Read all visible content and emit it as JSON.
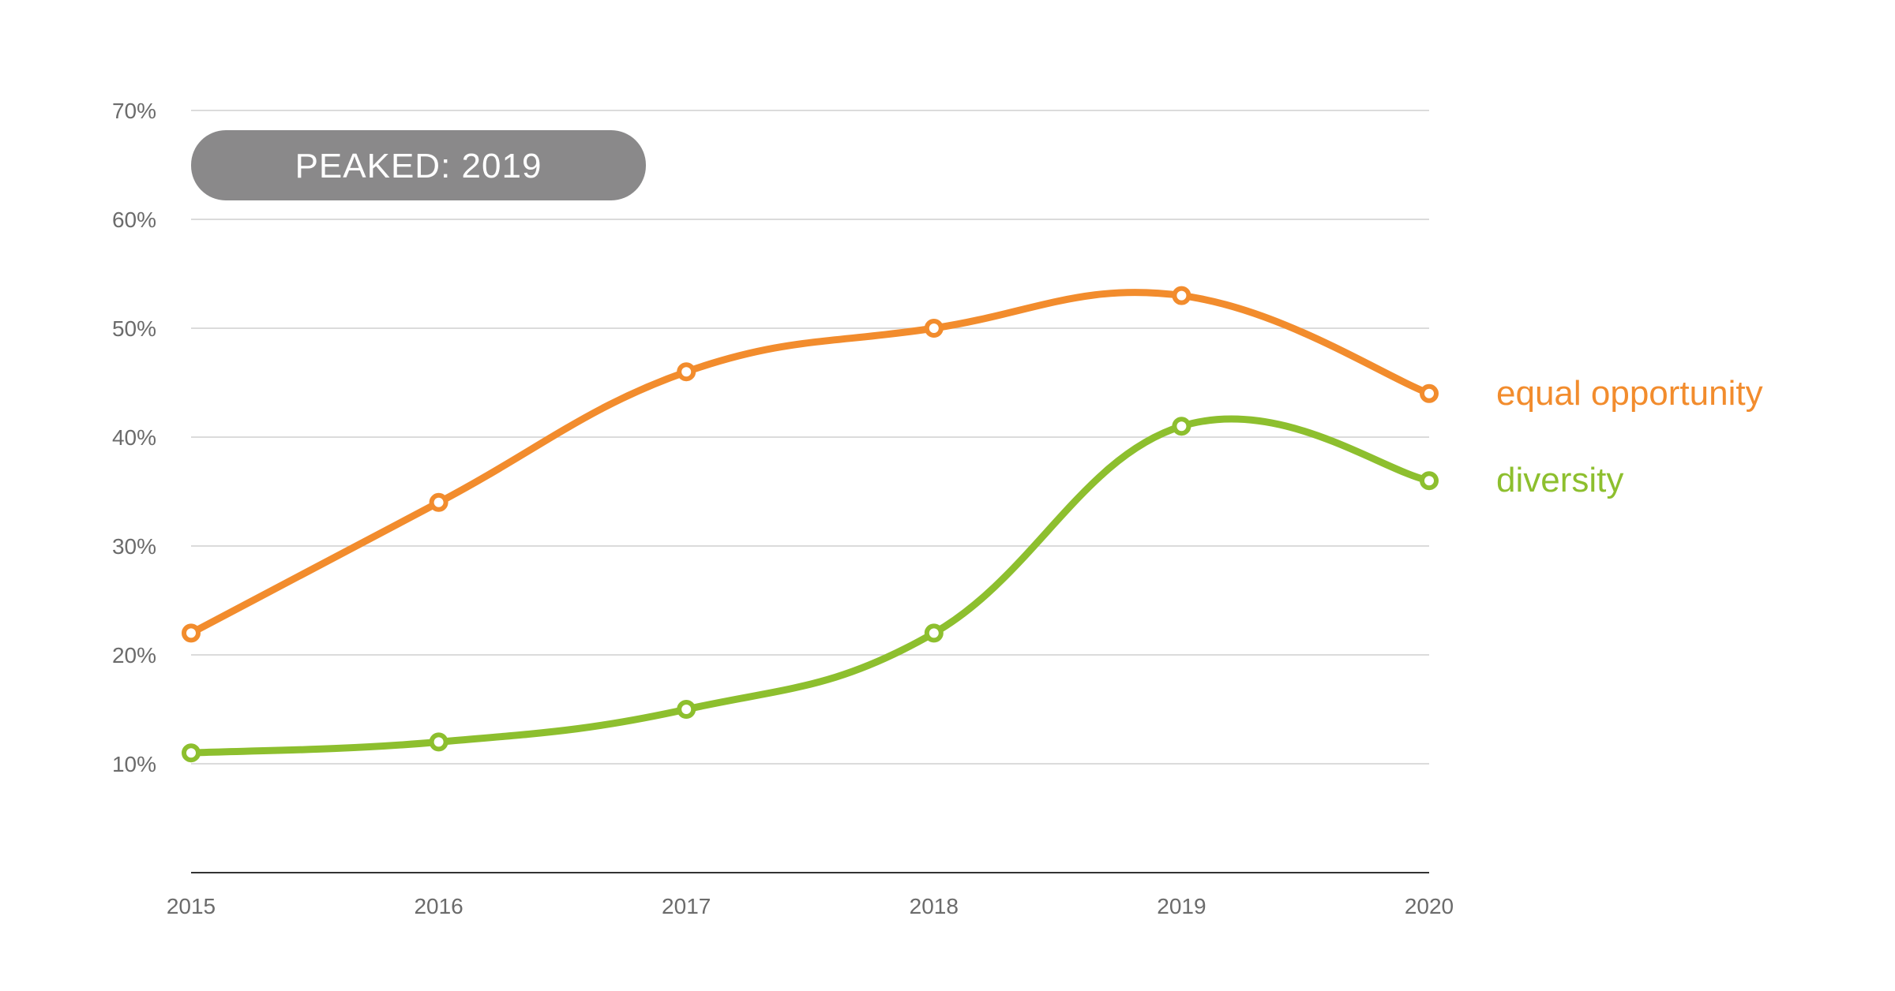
{
  "chart_data": {
    "type": "line",
    "x": [
      "2015",
      "2016",
      "2017",
      "2018",
      "2019",
      "2020"
    ],
    "series": [
      {
        "name": "equal opportunity",
        "color": "#f28c2d",
        "values": [
          22,
          34,
          46,
          50,
          53,
          44
        ]
      },
      {
        "name": "diversity",
        "color": "#8dbf2e",
        "values": [
          11,
          12,
          15,
          22,
          41,
          36
        ]
      }
    ],
    "y_ticks": [
      {
        "value": 10,
        "label": "10%"
      },
      {
        "value": 20,
        "label": "20%"
      },
      {
        "value": 30,
        "label": "30%"
      },
      {
        "value": 40,
        "label": "40%"
      },
      {
        "value": 50,
        "label": "50%"
      },
      {
        "value": 60,
        "label": "60%"
      },
      {
        "value": 70,
        "label": "70%"
      }
    ],
    "ylim": [
      0,
      70
    ],
    "grid": true,
    "legend": "right",
    "annotation": "PEAKED: 2019",
    "annotation_color": "#8a898a",
    "axis_color": "#333333",
    "grid_color": "#cfcfcf"
  }
}
